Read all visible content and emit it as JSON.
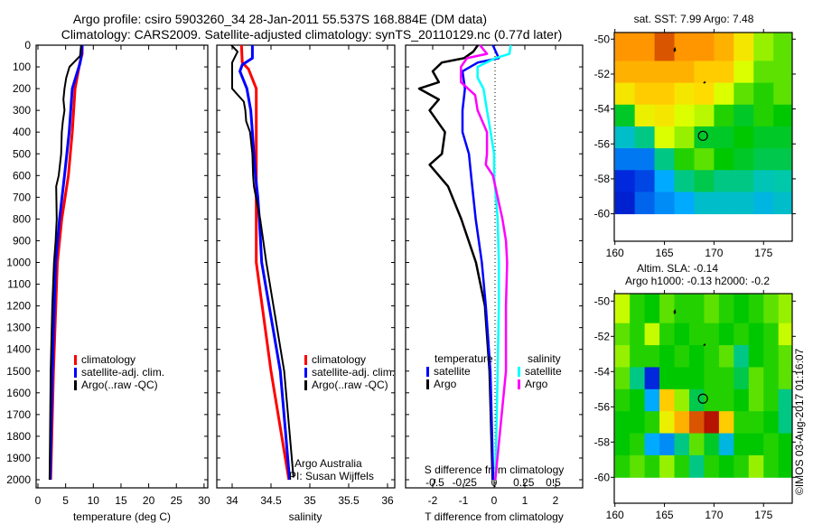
{
  "header": {
    "title_line1": "Argo profile: csiro 5903260_34 28-Jan-2011 55.537S 168.884E (DM data)",
    "title_line2": "Climatology: CARS2009. Satellite-adjusted climatology: synTS_20110129.nc (0.77d later)"
  },
  "colors": {
    "climatology": "#ff0000",
    "satellite": "#0000ff",
    "argo": "#000000",
    "sal_satellite": "#00ffff",
    "sal_argo": "#ff00ff"
  },
  "copyright": "©IMOS 03-Aug-2017 01:16:07",
  "chart_data": [
    {
      "type": "line",
      "id": "temperature",
      "xlabel": "temperature (deg C)",
      "ylabel": "",
      "xlim": [
        -0.3,
        30.7
      ],
      "ylim": [
        2040,
        0
      ],
      "xticks": [
        0,
        5,
        10,
        15,
        20,
        25,
        30
      ],
      "yticks": [
        0,
        100,
        200,
        300,
        400,
        500,
        600,
        700,
        800,
        900,
        1000,
        1100,
        1200,
        1300,
        1400,
        1500,
        1600,
        1700,
        1800,
        1900,
        2000
      ],
      "legend": [
        "climatology",
        "satellite-adj. clim.",
        "Argo(..raw -QC)"
      ],
      "legend_placement": "lower-center",
      "series": [
        {
          "name": "climatology",
          "color": "#ff0000",
          "depth": [
            0,
            40,
            83,
            200,
            400,
            600,
            800,
            1000,
            1500,
            2000
          ],
          "values": [
            8.0,
            8.0,
            7.55,
            6.7,
            6.2,
            5.5,
            4.3,
            3.5,
            2.8,
            2.3
          ]
        },
        {
          "name": "satellite-adj. clim.",
          "color": "#0000ff",
          "depth": [
            0,
            40,
            83,
            200,
            400,
            600,
            800,
            1000,
            1500,
            2000
          ],
          "values": [
            8.0,
            7.9,
            7.6,
            6.2,
            5.65,
            4.8,
            3.9,
            3.2,
            2.6,
            2.2
          ]
        },
        {
          "name": "Argo(..raw -QC)",
          "color": "#000000",
          "depth": [
            0,
            50,
            100,
            150,
            200,
            250,
            300,
            350,
            400,
            500,
            600,
            650,
            800,
            900,
            1000,
            1200,
            1500,
            2000
          ],
          "values": [
            7.8,
            7.6,
            5.7,
            5.1,
            4.8,
            4.6,
            4.8,
            4.5,
            4.3,
            4.2,
            3.75,
            3.3,
            3.4,
            3.2,
            2.9,
            2.6,
            2.3,
            2.1
          ]
        }
      ]
    },
    {
      "type": "line",
      "id": "salinity",
      "xlabel": "salinity",
      "xlim": [
        33.8,
        36.09
      ],
      "ylim": [
        2040,
        0
      ],
      "xticks": [
        "34",
        "34.5",
        "35",
        "35.5",
        "36"
      ],
      "legend": [
        "climatology",
        "satellite-adj. clim.",
        "Argo(..raw -QC)"
      ],
      "annotation": [
        "Argo Australia",
        "PI: Susan Wijffels"
      ],
      "series": [
        {
          "name": "climatology",
          "color": "#ff0000",
          "depth": [
            0,
            80,
            110,
            200,
            400,
            600,
            800,
            1000,
            1500,
            2000
          ],
          "values": [
            34.12,
            34.13,
            34.21,
            34.31,
            34.31,
            34.31,
            34.31,
            34.31,
            34.5,
            34.73
          ]
        },
        {
          "name": "satellite-adj. clim.",
          "color": "#0000ff",
          "depth": [
            0,
            60,
            90,
            120,
            200,
            300,
            400,
            500,
            600,
            700,
            800,
            1000,
            1500,
            2000
          ],
          "values": [
            34.26,
            34.26,
            34.13,
            34.1,
            34.19,
            34.24,
            34.26,
            34.28,
            34.3,
            34.33,
            34.35,
            34.38,
            34.62,
            34.74
          ]
        },
        {
          "name": "Argo(..raw -QC)",
          "color": "#000000",
          "depth": [
            0,
            30,
            80,
            140,
            200,
            220,
            260,
            300,
            350,
            400,
            500,
            600,
            650,
            800,
            1000,
            1500,
            1990
          ],
          "values": [
            33.99,
            34.07,
            34.0,
            34.0,
            34.0,
            34.05,
            34.15,
            34.17,
            34.18,
            34.23,
            34.26,
            34.27,
            34.28,
            34.36,
            34.44,
            34.67,
            34.79
          ]
        }
      ]
    },
    {
      "type": "line",
      "id": "differences",
      "xlabel": "T difference from climatology",
      "xlabel2": "S difference from climatology",
      "xlim": [
        -2.88,
        2.85
      ],
      "xticks": [
        "-2",
        "-1",
        "0",
        "1",
        "2"
      ],
      "xticks_s": [
        "-0.5",
        "-0.25",
        "0",
        "0.25",
        "0.5"
      ],
      "ylim": [
        2040,
        0
      ],
      "legend_t_title": "temperature",
      "legend_s_title": "salinity",
      "legend": [
        "satellite",
        "Argo",
        "satellite",
        "Argo"
      ],
      "series": [
        {
          "name": "T satellite",
          "axis": "T",
          "color": "#0000ff",
          "depth": [
            0,
            60,
            80,
            120,
            200,
            300,
            400,
            500,
            600,
            800,
            1000,
            1200,
            1500,
            2000
          ],
          "values": [
            -0.04,
            0.15,
            -0.53,
            -1.03,
            -0.95,
            -1.03,
            -1.03,
            -0.82,
            -0.75,
            -0.6,
            -0.4,
            -0.27,
            -0.12,
            -0.03
          ]
        },
        {
          "name": "T Argo",
          "axis": "T",
          "color": "#000000",
          "depth": [
            0,
            30,
            60,
            80,
            120,
            170,
            200,
            250,
            300,
            400,
            500,
            550,
            650,
            800,
            1000,
            1200,
            1500,
            2000
          ],
          "values": [
            -0.53,
            -0.68,
            -0.98,
            -1.7,
            -2.0,
            -1.8,
            -2.44,
            -1.8,
            -2.1,
            -1.6,
            -1.7,
            -2.1,
            -1.5,
            -1.07,
            -0.59,
            -0.3,
            -0.15,
            -0.05
          ]
        },
        {
          "name": "S satellite",
          "axis": "S",
          "color": "#00ffff",
          "depth": [
            0,
            40,
            60,
            100,
            150,
            200,
            300,
            400,
            500,
            600,
            800,
            1000,
            1200,
            1500,
            2000
          ],
          "values": [
            0.14,
            0.13,
            0.01,
            -0.14,
            -0.14,
            -0.09,
            -0.06,
            -0.03,
            0,
            0,
            0.03,
            0.04,
            0.04,
            0.03,
            0.01
          ]
        },
        {
          "name": "S Argo",
          "axis": "S",
          "color": "#ff00ff",
          "depth": [
            0,
            40,
            60,
            100,
            170,
            230,
            300,
            400,
            500,
            550,
            600,
            700,
            800,
            900,
            1000,
            1200,
            1500,
            2000
          ],
          "values": [
            -0.12,
            -0.06,
            -0.23,
            -0.28,
            -0.28,
            -0.16,
            -0.14,
            -0.06,
            -0.06,
            -0.07,
            -0.01,
            0.03,
            0.07,
            0.1,
            0.11,
            0.1,
            0.1,
            0.01
          ]
        }
      ]
    },
    {
      "type": "heatmap",
      "id": "sst-map",
      "title": "sat. SST: 7.99 Argo: 7.48",
      "xlim": [
        160,
        178
      ],
      "ylim": [
        -61.57,
        -49.6
      ],
      "xticks": [
        "160",
        "165",
        "170",
        "175"
      ],
      "yticks": [
        "-50",
        "-52",
        "-54",
        "-56",
        "-58",
        "-60"
      ],
      "grid_lon": [
        160,
        178
      ],
      "grid_lat": [
        -50,
        -60
      ],
      "values_scaled": [
        [
          0.85,
          0.85,
          0.9,
          0.85,
          0.85,
          0.8,
          0.7,
          0.55,
          0.5
        ],
        [
          0.8,
          0.8,
          0.8,
          0.8,
          0.75,
          0.75,
          0.65,
          0.5,
          0.5
        ],
        [
          0.7,
          0.75,
          0.75,
          0.7,
          0.72,
          0.65,
          0.5,
          0.45,
          0.5
        ],
        [
          0.4,
          0.68,
          0.7,
          0.65,
          0.6,
          0.45,
          0.4,
          0.45,
          0.42
        ],
        [
          0.3,
          0.35,
          0.65,
          0.55,
          0.4,
          0.4,
          0.42,
          0.4,
          0.4
        ],
        [
          0.2,
          0.2,
          0.35,
          0.45,
          0.5,
          0.42,
          0.4,
          0.38,
          0.38
        ],
        [
          0.12,
          0.15,
          0.25,
          0.35,
          0.38,
          0.35,
          0.35,
          0.32,
          0.33
        ],
        [
          0.1,
          0.18,
          0.22,
          0.25,
          0.3,
          0.3,
          0.3,
          0.28,
          0.3
        ]
      ],
      "profile_location": {
        "lon": 168.884,
        "lat": -55.537
      }
    },
    {
      "type": "heatmap",
      "id": "sla-map",
      "title": "Altim. SLA: -0.14",
      "subtitle": "Argo h1000: -0.13 h2000: -0.2",
      "xlim": [
        160,
        178
      ],
      "ylim": [
        -61.6,
        -49.6
      ],
      "xticks": [
        "160",
        "165",
        "170",
        "175"
      ],
      "yticks": [
        "-50",
        "-52",
        "-54",
        "-56",
        "-58",
        "-60"
      ],
      "grid_lon": [
        160,
        178
      ],
      "grid_lat": [
        -50,
        -60
      ],
      "values_scaled": [
        [
          0.62,
          0.45,
          0.42,
          0.5,
          0.45,
          0.45,
          0.5,
          0.45,
          0.42,
          0.45,
          0.5,
          0.55
        ],
        [
          0.5,
          0.45,
          0.62,
          0.45,
          0.42,
          0.45,
          0.45,
          0.42,
          0.45,
          0.42,
          0.45,
          0.62
        ],
        [
          0.55,
          0.45,
          0.45,
          0.42,
          0.45,
          0.42,
          0.45,
          0.5,
          0.35,
          0.42,
          0.45,
          0.5
        ],
        [
          0.5,
          0.35,
          0.12,
          0.42,
          0.42,
          0.42,
          0.45,
          0.45,
          0.38,
          0.5,
          0.45,
          0.5
        ],
        [
          0.45,
          0.42,
          0.25,
          0.75,
          0.55,
          0.38,
          0.45,
          0.45,
          0.42,
          0.5,
          0.45,
          0.35
        ],
        [
          0.42,
          0.42,
          0.45,
          0.68,
          0.8,
          0.9,
          0.95,
          0.75,
          0.45,
          0.45,
          0.42,
          0.35
        ],
        [
          0.42,
          0.45,
          0.25,
          0.22,
          0.35,
          0.5,
          0.4,
          0.28,
          0.42,
          0.42,
          0.45,
          0.42
        ],
        [
          0.45,
          0.5,
          0.45,
          0.55,
          0.45,
          0.35,
          0.45,
          0.42,
          0.45,
          0.55,
          0.45,
          0.42
        ]
      ],
      "profile_location": {
        "lon": 168.884,
        "lat": -55.537
      }
    }
  ]
}
